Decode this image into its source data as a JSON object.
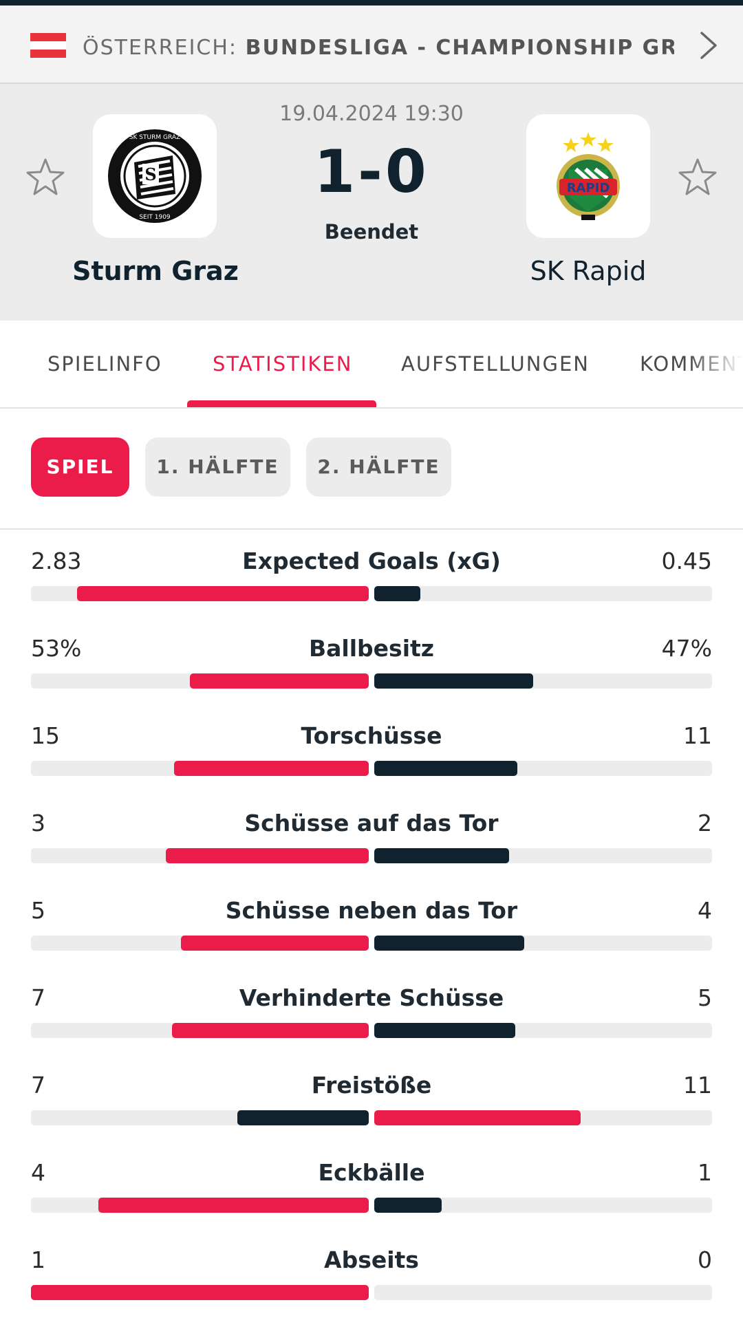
{
  "league": {
    "country": "ÖSTERREICH:",
    "competition": "BUNDESLIGA - CHAMPIONSHIP GR...",
    "flag_colors": [
      "#e8323c",
      "#ffffff",
      "#e8323c"
    ]
  },
  "match": {
    "datetime": "19.04.2024 19:30",
    "score": "1-0",
    "status": "Beendet",
    "home": {
      "name": "Sturm Graz",
      "logo_text_top": "SK STURM GRAZ",
      "logo_text_bottom": "SEIT 1909"
    },
    "away": {
      "name": "SK Rapid",
      "logo_text": "RAPID"
    }
  },
  "tabs": [
    {
      "label": "SPIELINFO",
      "active": false
    },
    {
      "label": "STATISTIKEN",
      "active": true
    },
    {
      "label": "AUFSTELLUNGEN",
      "active": false
    },
    {
      "label": "KOMMENTARE",
      "active": false
    }
  ],
  "periods": [
    {
      "label": "SPIEL",
      "active": true
    },
    {
      "label": "1. HÄLFTE",
      "active": false
    },
    {
      "label": "2. HÄLFTE",
      "active": false
    }
  ],
  "stats": [
    {
      "label": "Expected Goals (xG)",
      "home": "2.83",
      "away": "0.45",
      "home_share": 0.863,
      "away_share": 0.137,
      "leader": "home"
    },
    {
      "label": "Ballbesitz",
      "home": "53%",
      "away": "47%",
      "home_share": 0.53,
      "away_share": 0.47,
      "leader": "home"
    },
    {
      "label": "Torschüsse",
      "home": "15",
      "away": "11",
      "home_share": 0.577,
      "away_share": 0.423,
      "leader": "home"
    },
    {
      "label": "Schüsse auf das Tor",
      "home": "3",
      "away": "2",
      "home_share": 0.6,
      "away_share": 0.4,
      "leader": "home"
    },
    {
      "label": "Schüsse neben das Tor",
      "home": "5",
      "away": "4",
      "home_share": 0.556,
      "away_share": 0.444,
      "leader": "home"
    },
    {
      "label": "Verhinderte Schüsse",
      "home": "7",
      "away": "5",
      "home_share": 0.583,
      "away_share": 0.417,
      "leader": "home"
    },
    {
      "label": "Freistöße",
      "home": "7",
      "away": "11",
      "home_share": 0.389,
      "away_share": 0.611,
      "leader": "away"
    },
    {
      "label": "Eckbälle",
      "home": "4",
      "away": "1",
      "home_share": 0.8,
      "away_share": 0.2,
      "leader": "home"
    },
    {
      "label": "Abseits",
      "home": "1",
      "away": "0",
      "home_share": 1.0,
      "away_share": 0.0,
      "leader": "home"
    }
  ],
  "colors": {
    "accent": "#ec1c4a",
    "dark": "#10222e",
    "track": "#ececec"
  }
}
